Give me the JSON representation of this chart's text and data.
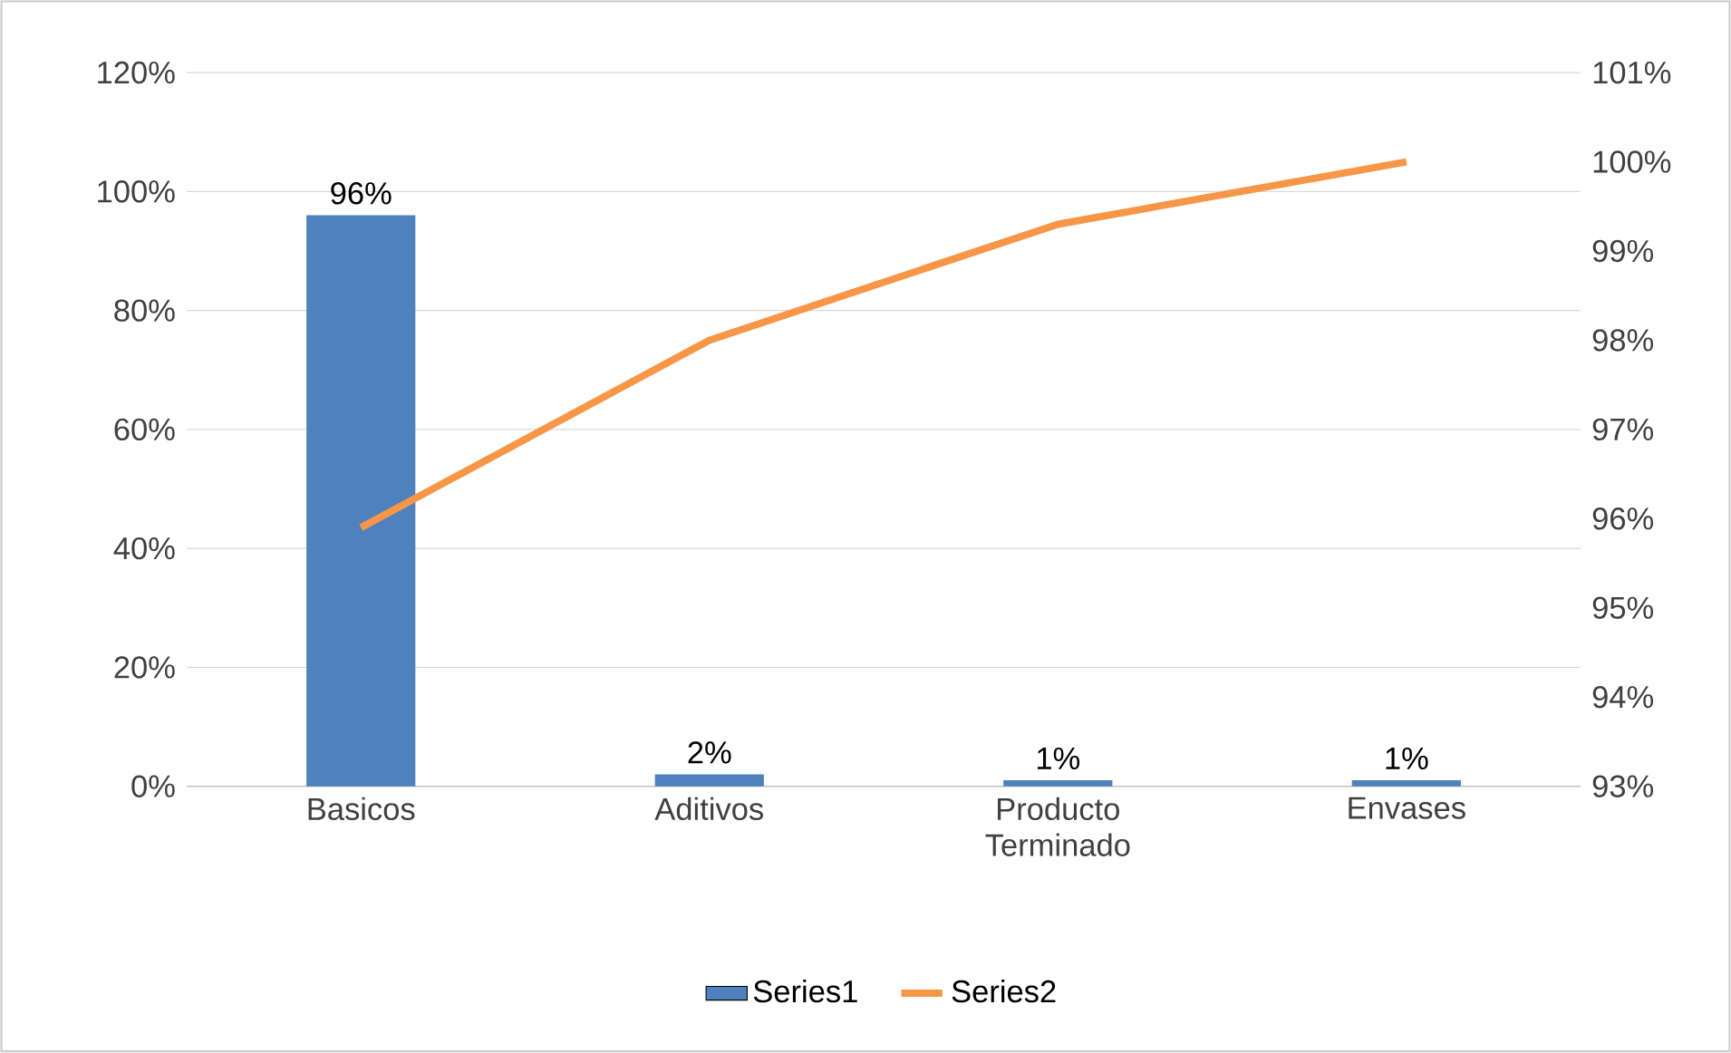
{
  "chart_data": {
    "type": "bar",
    "categories": [
      "Basicos",
      "Aditivos",
      "Producto Terminado",
      "Envases"
    ],
    "series": [
      {
        "name": "Series1",
        "color": "#4f81bd",
        "values": [
          96,
          2,
          1,
          1
        ],
        "value_labels": [
          "96%",
          "2%",
          "1%",
          "1%"
        ]
      },
      {
        "name": "Series2",
        "type": "line",
        "axis": "y2",
        "color": "#f79646",
        "values": [
          95.9,
          98.0,
          99.3,
          100.0
        ]
      }
    ],
    "ylim": [
      0,
      120
    ],
    "yticks": [
      {
        "value": 0,
        "label": "0%"
      },
      {
        "value": 20,
        "label": "20%"
      },
      {
        "value": 40,
        "label": "40%"
      },
      {
        "value": 60,
        "label": "60%"
      },
      {
        "value": 80,
        "label": "80%"
      },
      {
        "value": 100,
        "label": "100%"
      },
      {
        "value": 120,
        "label": "120%"
      }
    ],
    "y2lim": [
      93,
      101
    ],
    "y2ticks": [
      {
        "value": 93,
        "label": "93%"
      },
      {
        "value": 94,
        "label": "94%"
      },
      {
        "value": 95,
        "label": "95%"
      },
      {
        "value": 96,
        "label": "96%"
      },
      {
        "value": 97,
        "label": "97%"
      },
      {
        "value": 98,
        "label": "98%"
      },
      {
        "value": 99,
        "label": "99%"
      },
      {
        "value": 100,
        "label": "100%"
      },
      {
        "value": 101,
        "label": "101%"
      }
    ],
    "grid": "y",
    "legend": "bottom",
    "marker": "none"
  }
}
